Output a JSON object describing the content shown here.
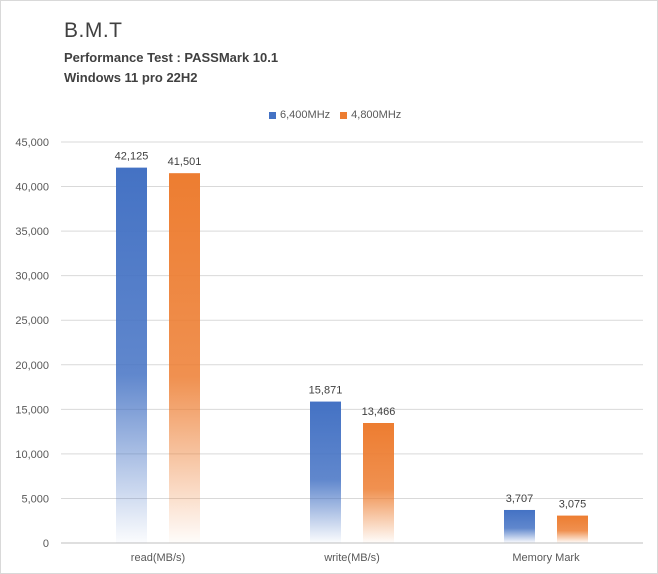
{
  "chart_data": {
    "type": "bar",
    "title": "B.M.T",
    "subtitle": "Performance Test : PASSMark 10.1",
    "subtitle2": "Windows 11 pro 22H2",
    "categories": [
      "read(MB/s)",
      "write(MB/s)",
      "Memory Mark"
    ],
    "series": [
      {
        "name": "6,400MHz",
        "color": "#4472c4",
        "values": [
          42125,
          15871,
          3707
        ],
        "labels": [
          "42,125",
          "15,871",
          "3,707"
        ]
      },
      {
        "name": "4,800MHz",
        "color": "#ed7d31",
        "values": [
          41501,
          13466,
          3075
        ],
        "labels": [
          "41,501",
          "13,466",
          "3,075"
        ]
      }
    ],
    "ylim": [
      0,
      45000
    ],
    "yticks": [
      0,
      5000,
      10000,
      15000,
      20000,
      25000,
      30000,
      35000,
      40000,
      45000
    ],
    "ytick_labels": [
      "0",
      "5,000",
      "10,000",
      "15,000",
      "20,000",
      "25,000",
      "30,000",
      "35,000",
      "40,000",
      "45,000"
    ],
    "grid": true,
    "legend_position": "top"
  }
}
